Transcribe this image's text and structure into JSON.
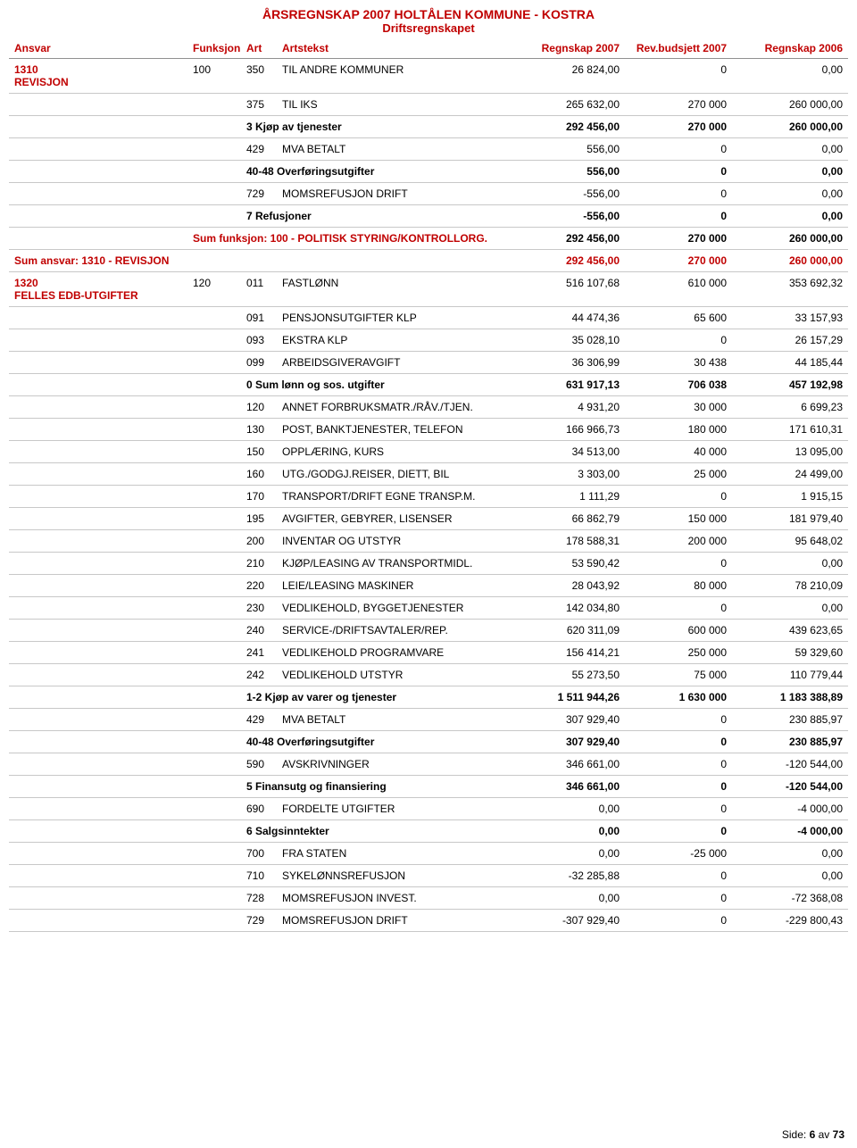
{
  "header": {
    "title1": "ÅRSREGNSKAP 2007 HOLTÅLEN KOMMUNE - KOSTRA",
    "title2": "Driftsregnskapet"
  },
  "columns": {
    "ansvar": "Ansvar",
    "funksjon": "Funksjon",
    "art": "Art",
    "artstekst": "Artstekst",
    "regnskap2007": "Regnskap 2007",
    "revbudsjett": "Rev.budsjett 2007",
    "regnskap2006": "Regnskap 2006"
  },
  "section1": {
    "ansvar_code": "1310",
    "ansvar_name": "REVISJON",
    "funksjon": "100",
    "rows": [
      {
        "art": "350",
        "text": "TIL ANDRE KOMMUNER",
        "v1": "26 824,00",
        "v2": "0",
        "v3": "0,00"
      },
      {
        "art": "375",
        "text": "TIL IKS",
        "v1": "265 632,00",
        "v2": "270 000",
        "v3": "260 000,00"
      }
    ],
    "sub1": {
      "text": "3 Kjøp av tjenester",
      "v1": "292 456,00",
      "v2": "270 000",
      "v3": "260 000,00"
    },
    "rows2": [
      {
        "art": "429",
        "text": "MVA BETALT",
        "v1": "556,00",
        "v2": "0",
        "v3": "0,00"
      }
    ],
    "sub2": {
      "text": "40-48 Overføringsutgifter",
      "v1": "556,00",
      "v2": "0",
      "v3": "0,00"
    },
    "rows3": [
      {
        "art": "729",
        "text": "MOMSREFUSJON DRIFT",
        "v1": "-556,00",
        "v2": "0",
        "v3": "0,00"
      }
    ],
    "sub3": {
      "text": "7 Refusjoner",
      "v1": "-556,00",
      "v2": "0",
      "v3": "0,00"
    },
    "sumfunk": {
      "label": "Sum funksjon: 100      - POLITISK STYRING/KONTROLLORG.",
      "v1": "292 456,00",
      "v2": "270 000",
      "v3": "260 000,00"
    },
    "sumansvar": {
      "label": "Sum ansvar: 1310       - REVISJON",
      "v1": "292 456,00",
      "v2": "270 000",
      "v3": "260 000,00"
    }
  },
  "section2": {
    "ansvar_code": "1320",
    "ansvar_name": "FELLES EDB-UTGIFTER",
    "funksjon": "120",
    "rowsA": [
      {
        "art": "011",
        "text": "FASTLØNN",
        "v1": "516 107,68",
        "v2": "610 000",
        "v3": "353 692,32"
      },
      {
        "art": "091",
        "text": "PENSJONSUTGIFTER KLP",
        "v1": "44 474,36",
        "v2": "65 600",
        "v3": "33 157,93"
      },
      {
        "art": "093",
        "text": "EKSTRA KLP",
        "v1": "35 028,10",
        "v2": "0",
        "v3": "26 157,29"
      },
      {
        "art": "099",
        "text": "ARBEIDSGIVERAVGIFT",
        "v1": "36 306,99",
        "v2": "30 438",
        "v3": "44 185,44"
      }
    ],
    "subA": {
      "text": "0 Sum lønn og sos. utgifter",
      "v1": "631 917,13",
      "v2": "706 038",
      "v3": "457 192,98"
    },
    "rowsB": [
      {
        "art": "120",
        "text": "ANNET FORBRUKSMATR./RÅV./TJEN.",
        "v1": "4 931,20",
        "v2": "30 000",
        "v3": "6 699,23"
      },
      {
        "art": "130",
        "text": "POST, BANKTJENESTER, TELEFON",
        "v1": "166 966,73",
        "v2": "180 000",
        "v3": "171 610,31"
      },
      {
        "art": "150",
        "text": "OPPLÆRING, KURS",
        "v1": "34 513,00",
        "v2": "40 000",
        "v3": "13 095,00"
      },
      {
        "art": "160",
        "text": "UTG./GODGJ.REISER, DIETT, BIL",
        "v1": "3 303,00",
        "v2": "25 000",
        "v3": "24 499,00"
      },
      {
        "art": "170",
        "text": "TRANSPORT/DRIFT EGNE TRANSP.M.",
        "v1": "1 111,29",
        "v2": "0",
        "v3": "1 915,15"
      },
      {
        "art": "195",
        "text": "AVGIFTER, GEBYRER, LISENSER",
        "v1": "66 862,79",
        "v2": "150 000",
        "v3": "181 979,40"
      },
      {
        "art": "200",
        "text": "INVENTAR OG UTSTYR",
        "v1": "178 588,31",
        "v2": "200 000",
        "v3": "95 648,02"
      },
      {
        "art": "210",
        "text": "KJØP/LEASING AV TRANSPORTMIDL.",
        "v1": "53 590,42",
        "v2": "0",
        "v3": "0,00"
      },
      {
        "art": "220",
        "text": "LEIE/LEASING MASKINER",
        "v1": "28 043,92",
        "v2": "80 000",
        "v3": "78 210,09"
      },
      {
        "art": "230",
        "text": "VEDLIKEHOLD, BYGGETJENESTER",
        "v1": "142 034,80",
        "v2": "0",
        "v3": "0,00"
      },
      {
        "art": "240",
        "text": "SERVICE-/DRIFTSAVTALER/REP.",
        "v1": "620 311,09",
        "v2": "600 000",
        "v3": "439 623,65"
      },
      {
        "art": "241",
        "text": "VEDLIKEHOLD PROGRAMVARE",
        "v1": "156 414,21",
        "v2": "250 000",
        "v3": "59 329,60"
      },
      {
        "art": "242",
        "text": "VEDLIKEHOLD UTSTYR",
        "v1": "55 273,50",
        "v2": "75 000",
        "v3": "110 779,44"
      }
    ],
    "subB": {
      "text": "1-2 Kjøp av varer og tjenester",
      "v1": "1 511 944,26",
      "v2": "1 630 000",
      "v3": "1 183 388,89"
    },
    "rowsC": [
      {
        "art": "429",
        "text": "MVA BETALT",
        "v1": "307 929,40",
        "v2": "0",
        "v3": "230 885,97"
      }
    ],
    "subC": {
      "text": "40-48 Overføringsutgifter",
      "v1": "307 929,40",
      "v2": "0",
      "v3": "230 885,97"
    },
    "rowsD": [
      {
        "art": "590",
        "text": "AVSKRIVNINGER",
        "v1": "346 661,00",
        "v2": "0",
        "v3": "-120 544,00"
      }
    ],
    "subD": {
      "text": "5 Finansutg og finansiering",
      "v1": "346 661,00",
      "v2": "0",
      "v3": "-120 544,00"
    },
    "rowsE": [
      {
        "art": "690",
        "text": "FORDELTE UTGIFTER",
        "v1": "0,00",
        "v2": "0",
        "v3": "-4 000,00"
      }
    ],
    "subE": {
      "text": "6 Salgsinntekter",
      "v1": "0,00",
      "v2": "0",
      "v3": "-4 000,00"
    },
    "rowsF": [
      {
        "art": "700",
        "text": "FRA STATEN",
        "v1": "0,00",
        "v2": "-25 000",
        "v3": "0,00"
      },
      {
        "art": "710",
        "text": "SYKELØNNSREFUSJON",
        "v1": "-32 285,88",
        "v2": "0",
        "v3": "0,00"
      },
      {
        "art": "728",
        "text": "MOMSREFUSJON INVEST.",
        "v1": "0,00",
        "v2": "0",
        "v3": "-72 368,08"
      },
      {
        "art": "729",
        "text": "MOMSREFUSJON DRIFT",
        "v1": "-307 929,40",
        "v2": "0",
        "v3": "-229 800,43"
      }
    ]
  },
  "footer": {
    "label": "Side:",
    "current": "6",
    "sep": "av",
    "total": "73"
  }
}
